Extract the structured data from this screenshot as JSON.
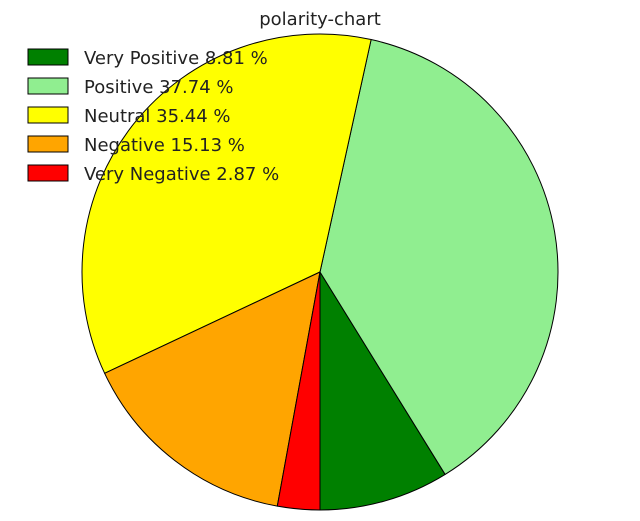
{
  "chart_data": {
    "type": "pie",
    "title": "polarity-chart",
    "legend_position": "top-left",
    "categories": [
      "Very Positive",
      "Positive",
      "Neutral",
      "Negative",
      "Very Negative"
    ],
    "values": [
      8.81,
      37.74,
      35.44,
      15.13,
      2.87
    ],
    "legend": [
      "Very Positive 8.81 %",
      "Positive 37.74 %",
      "Neutral 35.44 %",
      "Negative 15.13 %",
      "Very Negative 2.87 %"
    ],
    "colors": [
      "#008000",
      "#90ee90",
      "#ffff00",
      "#ffa500",
      "#ff0000"
    ],
    "start_angle_deg": 270,
    "direction": "counterclockwise"
  }
}
